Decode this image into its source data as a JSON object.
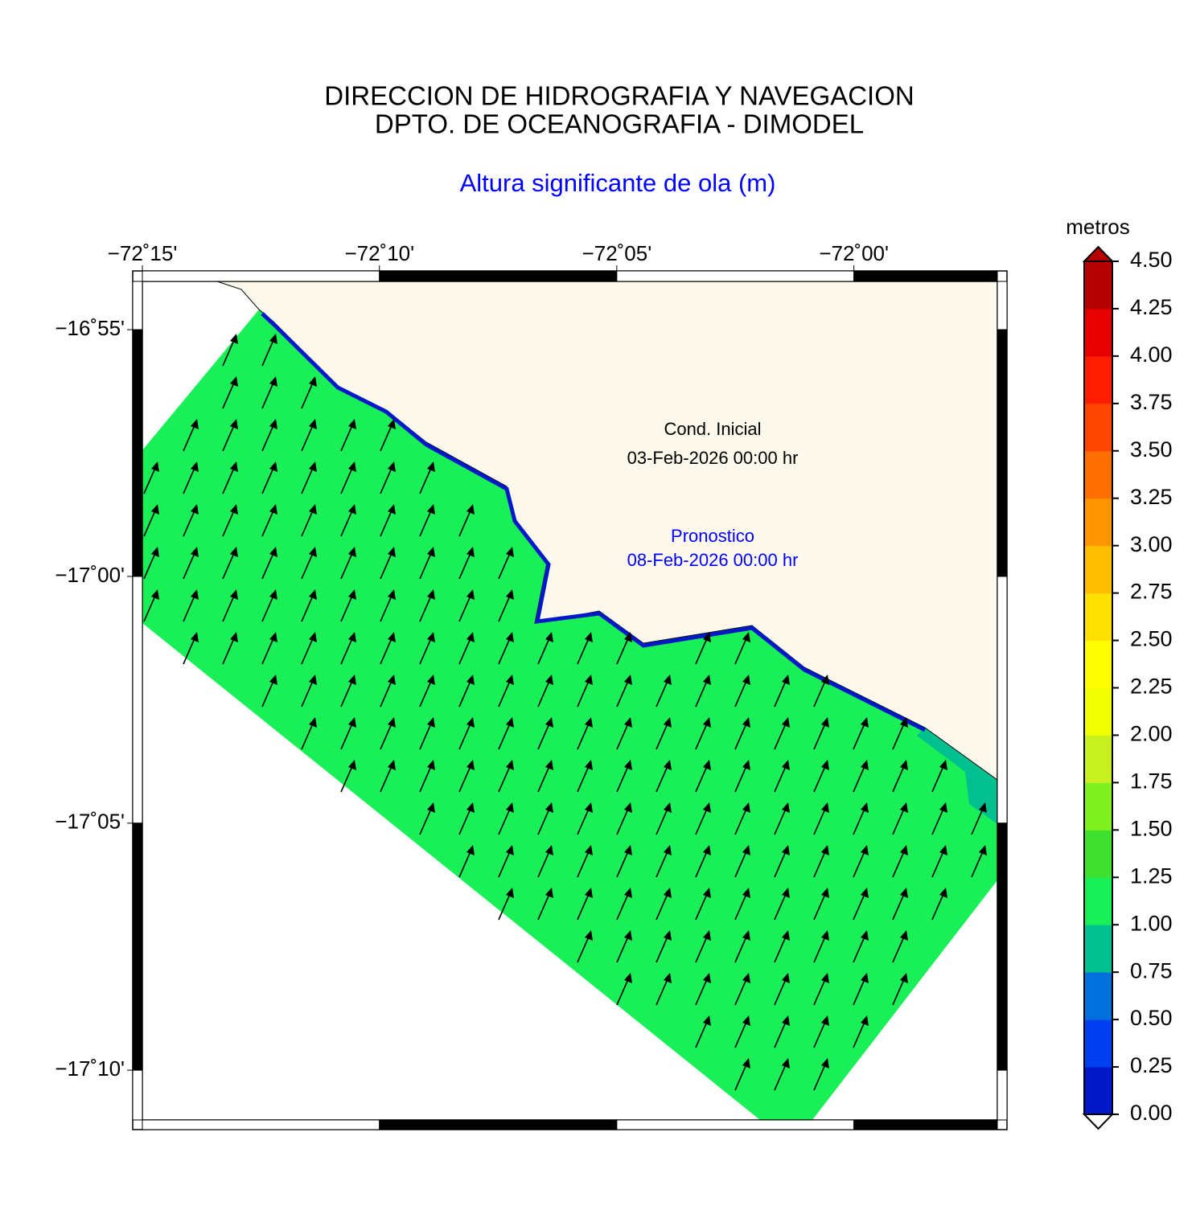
{
  "header": {
    "title": [
      "DIRECCION DE HIDROGRAFIA Y NAVEGACION",
      "DPTO. DE OCEANOGRAFIA - DIMODEL"
    ],
    "subtitle": "Altura significante de ola (m)"
  },
  "annotations": {
    "initial_label": "Cond. Inicial",
    "initial_date": "03-Feb-2026 00:00 hr",
    "forecast_label": "Pronostico",
    "forecast_date": "08-Feb-2026 00:00 hr"
  },
  "map": {
    "lonlim": [
      -72.25,
      -71.9496
    ],
    "latlim": [
      -17.1835,
      -16.9004
    ],
    "xticks": [
      {
        "value": -72.25,
        "label": "−72˚15'"
      },
      {
        "value": -72.1667,
        "label": "−72˚10'"
      },
      {
        "value": -72.0833,
        "label": "−72˚05'"
      },
      {
        "value": -72.0,
        "label": "−72˚00'"
      }
    ],
    "yticks": [
      {
        "value": -16.9167,
        "label": "−16˚55'"
      },
      {
        "value": -17.0,
        "label": "−17˚00'"
      },
      {
        "value": -17.0833,
        "label": "−17˚05'"
      },
      {
        "value": -17.1667,
        "label": "−17˚10'"
      }
    ]
  },
  "colorbar": {
    "unit": "metros",
    "lim": [
      0,
      4.5
    ],
    "ticks": [
      {
        "value": 0,
        "label": "0.00"
      },
      {
        "value": 0.25,
        "label": "0.25"
      },
      {
        "value": 0.5,
        "label": "0.50"
      },
      {
        "value": 0.75,
        "label": "0.75"
      },
      {
        "value": 1,
        "label": "1.00"
      },
      {
        "value": 1.25,
        "label": "1.25"
      },
      {
        "value": 1.5,
        "label": "1.50"
      },
      {
        "value": 1.75,
        "label": "1.75"
      },
      {
        "value": 2,
        "label": "2.00"
      },
      {
        "value": 2.25,
        "label": "2.25"
      },
      {
        "value": 2.5,
        "label": "2.50"
      },
      {
        "value": 2.75,
        "label": "2.75"
      },
      {
        "value": 3,
        "label": "3.00"
      },
      {
        "value": 3.25,
        "label": "3.25"
      },
      {
        "value": 3.5,
        "label": "3.50"
      },
      {
        "value": 3.75,
        "label": "3.75"
      },
      {
        "value": 4,
        "label": "4.00"
      },
      {
        "value": 4.25,
        "label": "4.25"
      },
      {
        "value": 4.5,
        "label": "4.50"
      }
    ],
    "colors": [
      "#0019c8",
      "#0040f0",
      "#0070dc",
      "#00c090",
      "#19f058",
      "#40e030",
      "#80f020",
      "#c8f020",
      "#f0ff00",
      "#ffff00",
      "#ffe000",
      "#ffbe00",
      "#ff9600",
      "#ff6e00",
      "#ff4600",
      "#ff1e00",
      "#e60000",
      "#b40000"
    ]
  }
}
